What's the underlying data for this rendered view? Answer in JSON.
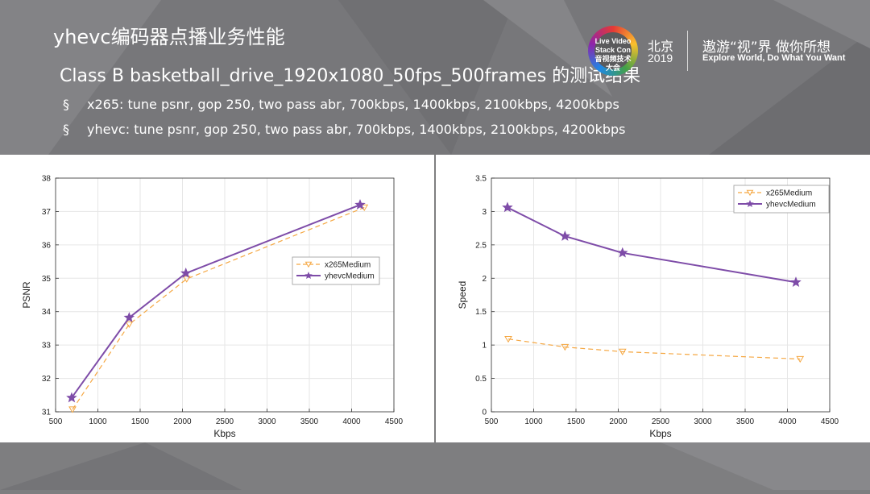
{
  "slide": {
    "title": "yhevc编码器点播业务性能",
    "subtitle": "Class B basketball_drive_1920x1080_50fps_500frames 的测试结果",
    "bullets": [
      {
        "mark": "§",
        "text": "x265: tune psnr, gop 250, two pass abr, 700kbps, 1400kbps, 2100kbps, 4200kbps"
      },
      {
        "mark": "§",
        "text": "yhevc: tune psnr, gop 250, two pass abr, 700kbps, 1400kbps, 2100kbps, 4200kbps"
      }
    ]
  },
  "branding": {
    "logo_text": "Live Video Stack Con 音视频技术大会",
    "city": "北京",
    "year": "2019",
    "slogan_cn": "遨游“视”界 做你所想",
    "slogan_en": "Explore World, Do What You Want"
  },
  "colors": {
    "x265": "#f5a742",
    "yhevc": "#7e4ca8"
  },
  "chart_data": [
    {
      "type": "line",
      "title": "",
      "xlabel": "Kbps",
      "ylabel": "PSNR",
      "xlim": [
        500,
        4500
      ],
      "ylim": [
        31,
        38
      ],
      "xticks": [
        500,
        1000,
        1500,
        2000,
        2500,
        3000,
        3500,
        4000,
        4500
      ],
      "yticks": [
        31,
        32,
        33,
        34,
        35,
        36,
        37,
        38
      ],
      "grid": true,
      "legend_position": "middle-right",
      "series": [
        {
          "name": "x265Medium",
          "style": "dashed",
          "marker": "triangle-down",
          "x": [
            700,
            1370,
            2050,
            4150
          ],
          "y": [
            31.07,
            33.62,
            34.98,
            37.12
          ]
        },
        {
          "name": "yhevcMedium",
          "style": "solid",
          "marker": "star",
          "x": [
            690,
            1370,
            2040,
            4100
          ],
          "y": [
            31.42,
            33.82,
            35.15,
            37.2
          ]
        }
      ]
    },
    {
      "type": "line",
      "title": "",
      "xlabel": "Kbps",
      "ylabel": "Speed",
      "xlim": [
        500,
        4500
      ],
      "ylim": [
        0,
        3.5
      ],
      "xticks": [
        500,
        1000,
        1500,
        2000,
        2500,
        3000,
        3500,
        4000,
        4500
      ],
      "yticks": [
        0,
        0.5,
        1,
        1.5,
        2,
        2.5,
        3,
        3.5
      ],
      "grid": true,
      "legend_position": "top-right",
      "series": [
        {
          "name": "x265Medium",
          "style": "dashed",
          "marker": "triangle-down",
          "x": [
            700,
            1370,
            2050,
            4150
          ],
          "y": [
            1.09,
            0.97,
            0.9,
            0.79
          ]
        },
        {
          "name": "yhevcMedium",
          "style": "solid",
          "marker": "star",
          "x": [
            690,
            1370,
            2050,
            4100
          ],
          "y": [
            3.06,
            2.63,
            2.38,
            1.94
          ]
        }
      ]
    }
  ]
}
